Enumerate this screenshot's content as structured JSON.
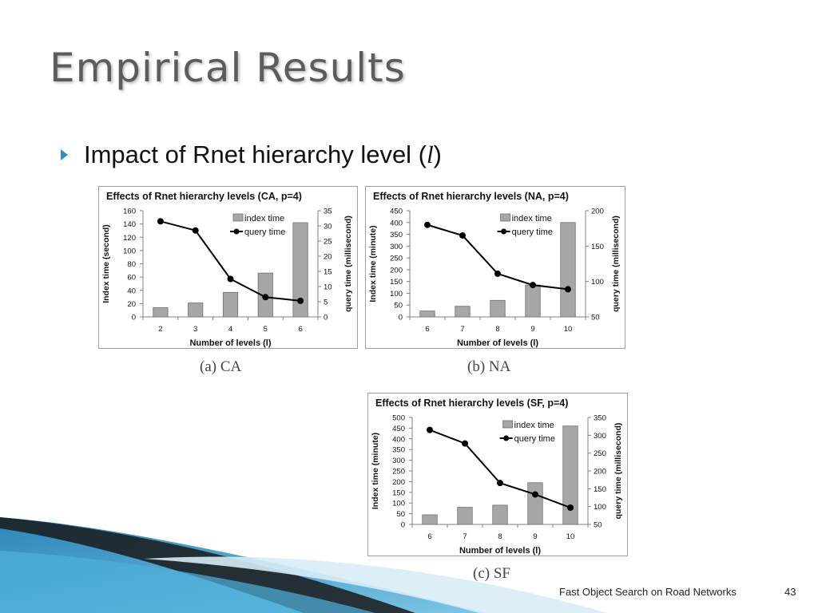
{
  "slide": {
    "title": "Empirical Results",
    "bullet": "Impact of Rnet hierarchy level (",
    "bullet_var": "l",
    "bullet_close": ")",
    "footer": "Fast Object Search on Road Networks",
    "page_number": "43"
  },
  "colors": {
    "bar": "#a6a6a6",
    "line": "#000000",
    "accent": "#2e8fc7"
  },
  "chart_data": [
    {
      "type": "bar",
      "title": "Effects of Rnet hierarchy levels (CA, p=4)",
      "caption": "(a) CA",
      "xlabel": "Number of levels (l)",
      "ylabel": "Index time (second)",
      "y2label": "query time (millisecond)",
      "categories": [
        "2",
        "3",
        "4",
        "5",
        "6"
      ],
      "ylim": [
        0,
        160
      ],
      "yticks": [
        0,
        20,
        40,
        60,
        80,
        100,
        120,
        140,
        160
      ],
      "y2lim": [
        0,
        35
      ],
      "y2ticks": [
        0,
        5,
        10,
        15,
        20,
        25,
        30,
        35
      ],
      "series": [
        {
          "name": "index time",
          "axis": "left",
          "values": [
            14,
            21,
            37,
            66,
            142
          ]
        },
        {
          "name": "query time",
          "axis": "right",
          "values": [
            31.5,
            28.5,
            12.5,
            6.5,
            5.3
          ]
        }
      ]
    },
    {
      "type": "bar",
      "title": "Effects of Rnet hierarchy levels (NA, p=4)",
      "caption": "(b) NA",
      "xlabel": "Number of levels (l)",
      "ylabel": "Index time (minute)",
      "y2label": "query time (millisecond)",
      "categories": [
        "6",
        "7",
        "8",
        "9",
        "10"
      ],
      "ylim": [
        0,
        450
      ],
      "yticks": [
        0,
        50,
        100,
        150,
        200,
        250,
        300,
        350,
        400,
        450
      ],
      "y2lim": [
        50,
        200
      ],
      "y2ticks": [
        50,
        100,
        150,
        200
      ],
      "series": [
        {
          "name": "index time",
          "axis": "left",
          "values": [
            25,
            45,
            70,
            135,
            400
          ]
        },
        {
          "name": "query time",
          "axis": "right",
          "values": [
            180,
            165,
            111,
            95,
            89
          ]
        }
      ]
    },
    {
      "type": "bar",
      "title": "Effects of Rnet hierarchy levels (SF, p=4)",
      "caption": "(c) SF",
      "xlabel": "Number of levels (l)",
      "ylabel": "Index time (minute)",
      "y2label": "query time (millisecond)",
      "categories": [
        "6",
        "7",
        "8",
        "9",
        "10"
      ],
      "ylim": [
        0,
        500
      ],
      "yticks": [
        0,
        50,
        100,
        150,
        200,
        250,
        300,
        350,
        400,
        450,
        500
      ],
      "y2lim": [
        50,
        350
      ],
      "y2ticks": [
        50,
        100,
        150,
        200,
        250,
        300,
        350
      ],
      "series": [
        {
          "name": "index time",
          "axis": "left",
          "values": [
            45,
            80,
            90,
            195,
            460
          ]
        },
        {
          "name": "query time",
          "axis": "right",
          "values": [
            315,
            277,
            166,
            134,
            97
          ]
        }
      ]
    }
  ]
}
